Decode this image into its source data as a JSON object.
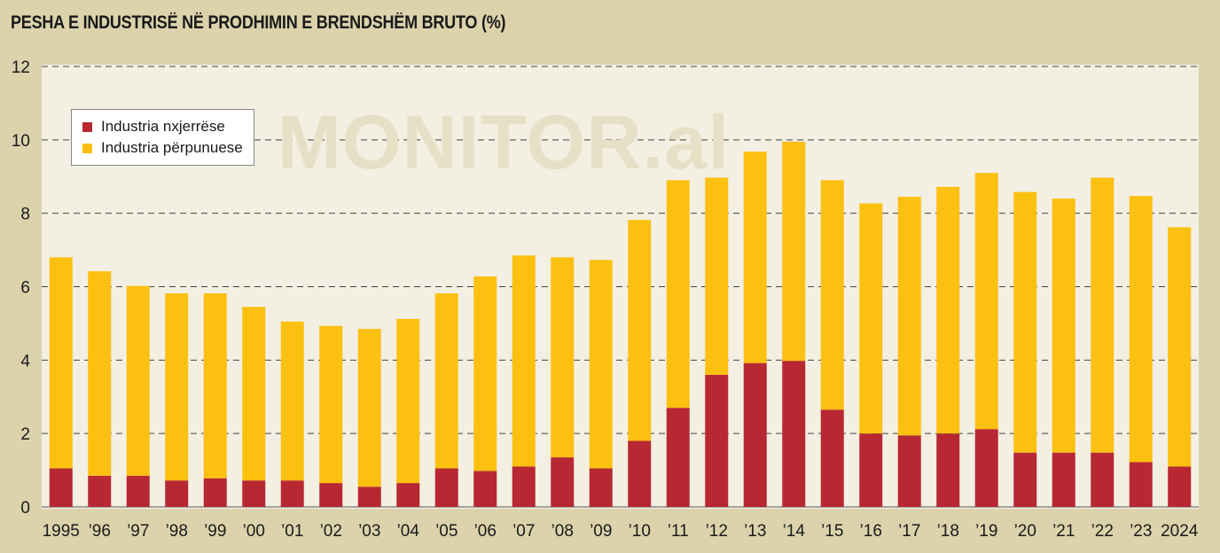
{
  "title": "PESHA E INDUSTRISË NË PRODHIMIN E BRENDSHËM BRUTO (%)",
  "watermark": "MONITOR.al",
  "colors": {
    "background": "#dcd3ac",
    "plot_background": "#f3efe2",
    "extractive": "#b72833",
    "manufacturing": "#fcc010"
  },
  "chart_data": {
    "type": "bar",
    "stacked": true,
    "title": "PESHA E INDUSTRISË NË PRODHIMIN E BRENDSHËM BRUTO (%)",
    "categories": [
      "1995",
      "'96",
      "'97",
      "'98",
      "'99",
      "'00",
      "'01",
      "'02",
      "'03",
      "'04",
      "'05",
      "'06",
      "'07",
      "'08",
      "'09",
      "'10",
      "'11",
      "'12",
      "'13",
      "'14",
      "'15",
      "'16",
      "'17",
      "'18",
      "'19",
      "'20",
      "'21",
      "'22",
      "'23",
      "2024"
    ],
    "series": [
      {
        "name": "Industria nxjerrëse",
        "color": "#b72833",
        "values": [
          1.05,
          0.85,
          0.85,
          0.72,
          0.78,
          0.72,
          0.72,
          0.65,
          0.55,
          0.65,
          1.05,
          0.98,
          1.1,
          1.35,
          1.05,
          1.8,
          2.7,
          3.6,
          3.92,
          3.98,
          2.65,
          2.0,
          1.95,
          2.0,
          2.12,
          1.48,
          1.48,
          1.48,
          1.22,
          1.1
        ]
      },
      {
        "name": "Industria përpunuese",
        "color": "#fcc010",
        "values": [
          5.75,
          5.57,
          5.17,
          5.1,
          5.04,
          4.73,
          4.33,
          4.28,
          4.3,
          4.47,
          4.77,
          5.3,
          5.75,
          5.45,
          5.68,
          6.02,
          6.2,
          5.37,
          5.76,
          5.97,
          6.25,
          6.27,
          6.5,
          6.72,
          6.98,
          7.1,
          6.92,
          7.49,
          7.25,
          6.52
        ]
      }
    ],
    "ylim": [
      0,
      12
    ],
    "yticks": [
      0,
      2,
      4,
      6,
      8,
      10,
      12
    ],
    "grid": true,
    "legend_position": "top-left"
  }
}
